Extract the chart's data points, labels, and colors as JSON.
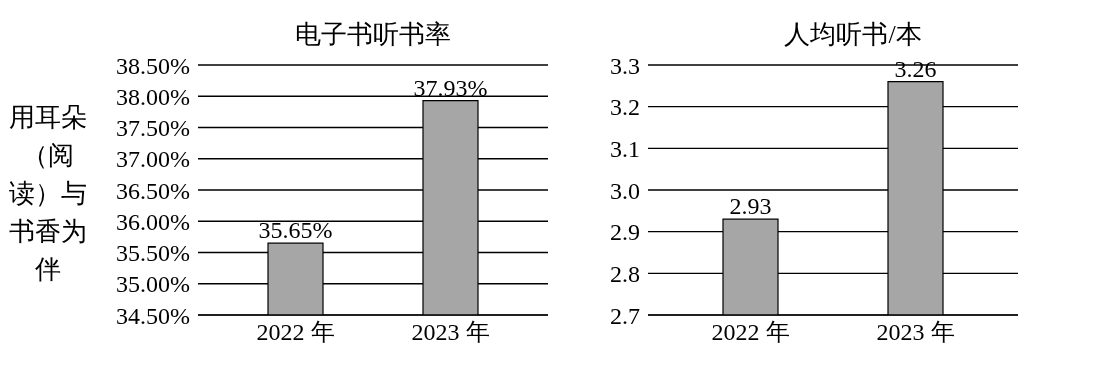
{
  "chart_data": [
    {
      "type": "bar",
      "title": "电子书听书率",
      "ylabel": "用耳朵（阅读）与书香为伴",
      "categories": [
        "2022 年",
        "2023 年"
      ],
      "values": [
        35.65,
        37.93
      ],
      "value_labels": [
        "35.65%",
        "37.93%"
      ],
      "color": "#a6a6a6",
      "ylim": [
        34.5,
        38.5
      ],
      "yticks": [
        {
          "value": 34.5,
          "label": "34.50%"
        },
        {
          "value": 35,
          "label": "35.00%"
        },
        {
          "value": 35.5,
          "label": "35.50%"
        },
        {
          "value": 36,
          "label": "36.00%"
        },
        {
          "value": 36.5,
          "label": "36.50%"
        },
        {
          "value": 37,
          "label": "37.00%"
        },
        {
          "value": 37.5,
          "label": "37.50%"
        },
        {
          "value": 38,
          "label": "38.00%"
        },
        {
          "value": 38.5,
          "label": "38.50%"
        }
      ],
      "grid": "y"
    },
    {
      "type": "bar",
      "title": "人均听书/本",
      "categories": [
        "2022 年",
        "2023 年"
      ],
      "values": [
        2.93,
        3.26
      ],
      "data_labels": true,
      "color": "#a6a6a6",
      "ylim": [
        2.7,
        3.3
      ],
      "yticks": [
        2.7,
        2.8,
        2.9,
        {
          "value": 3,
          "label": "3.0"
        },
        3.1,
        3.2,
        3.3
      ],
      "grid": "y"
    }
  ]
}
